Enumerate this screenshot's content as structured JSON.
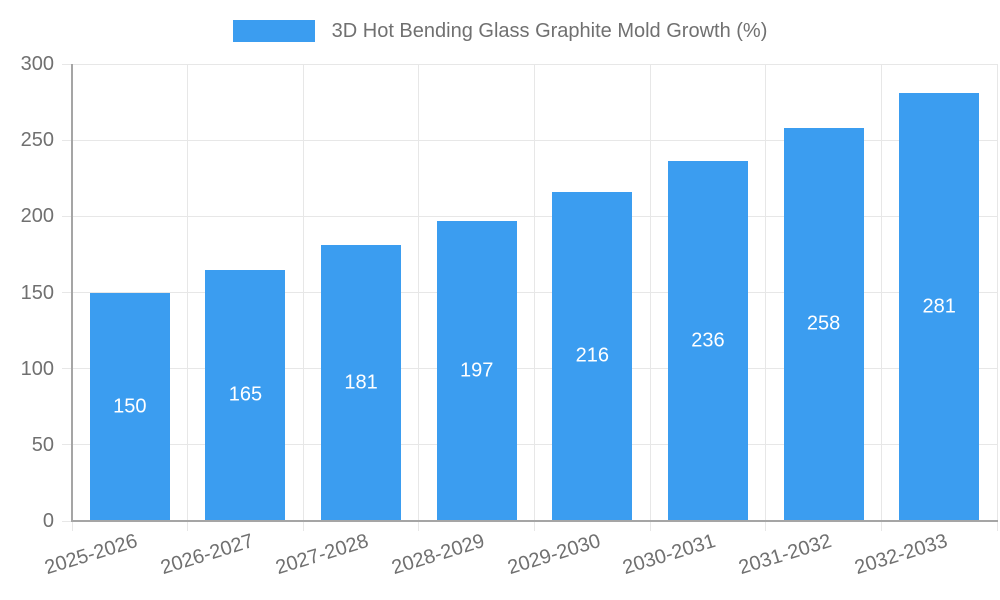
{
  "chart_data": {
    "type": "bar",
    "series_name": "3D Hot Bending Glass Graphite Mold Growth (%)",
    "legend_position": "top-center",
    "categories": [
      "2025-2026",
      "2026-2027",
      "2027-2028",
      "2028-2029",
      "2029-2030",
      "2030-2031",
      "2031-2032",
      "2032-2033"
    ],
    "values": [
      150,
      165,
      181,
      197,
      216,
      236,
      258,
      281
    ],
    "xlabel": "",
    "ylabel": "",
    "ylim": [
      0,
      300
    ],
    "yticks": [
      0,
      50,
      100,
      150,
      200,
      250,
      300
    ],
    "grid": true,
    "value_label_position": "inside-center",
    "x_label_rotation_deg": -17,
    "colors": {
      "bar": "#3B9DF0",
      "grid": "#E7E7E7",
      "axis": "#A5A5A5",
      "text": "#707070",
      "value_label": "#FFFFFF",
      "background": "#FFFFFF"
    }
  }
}
